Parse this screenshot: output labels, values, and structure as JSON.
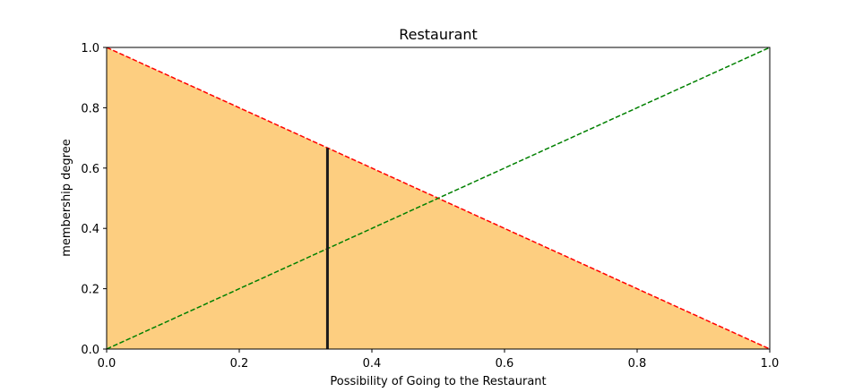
{
  "chart_data": {
    "type": "area",
    "title": "Restaurant",
    "xlabel": "Possibility of Going to the Restaurant",
    "ylabel": "membership degree",
    "xlim": [
      0.0,
      1.0
    ],
    "ylim": [
      0.0,
      1.0
    ],
    "x_ticks": [
      "0.0",
      "0.2",
      "0.4",
      "0.6",
      "0.8",
      "1.0"
    ],
    "y_ticks": [
      "0.0",
      "0.2",
      "0.4",
      "0.6",
      "0.8",
      "1.0"
    ],
    "grid": false,
    "series": [
      {
        "type": "line",
        "style": "dashed",
        "color": "#ff0000",
        "x": [
          0.0,
          1.0
        ],
        "y": [
          1.0,
          0.0
        ]
      },
      {
        "type": "line",
        "style": "dashed",
        "color": "#008000",
        "x": [
          0.0,
          1.0
        ],
        "y": [
          0.0,
          1.0
        ]
      },
      {
        "type": "area",
        "color": "#fdce80",
        "x": [
          0.0,
          1.0
        ],
        "y": [
          1.0,
          0.0
        ]
      },
      {
        "type": "vline",
        "color": "#1a1a1a",
        "x": 0.333,
        "y_range": [
          0.0,
          0.667
        ]
      }
    ]
  }
}
